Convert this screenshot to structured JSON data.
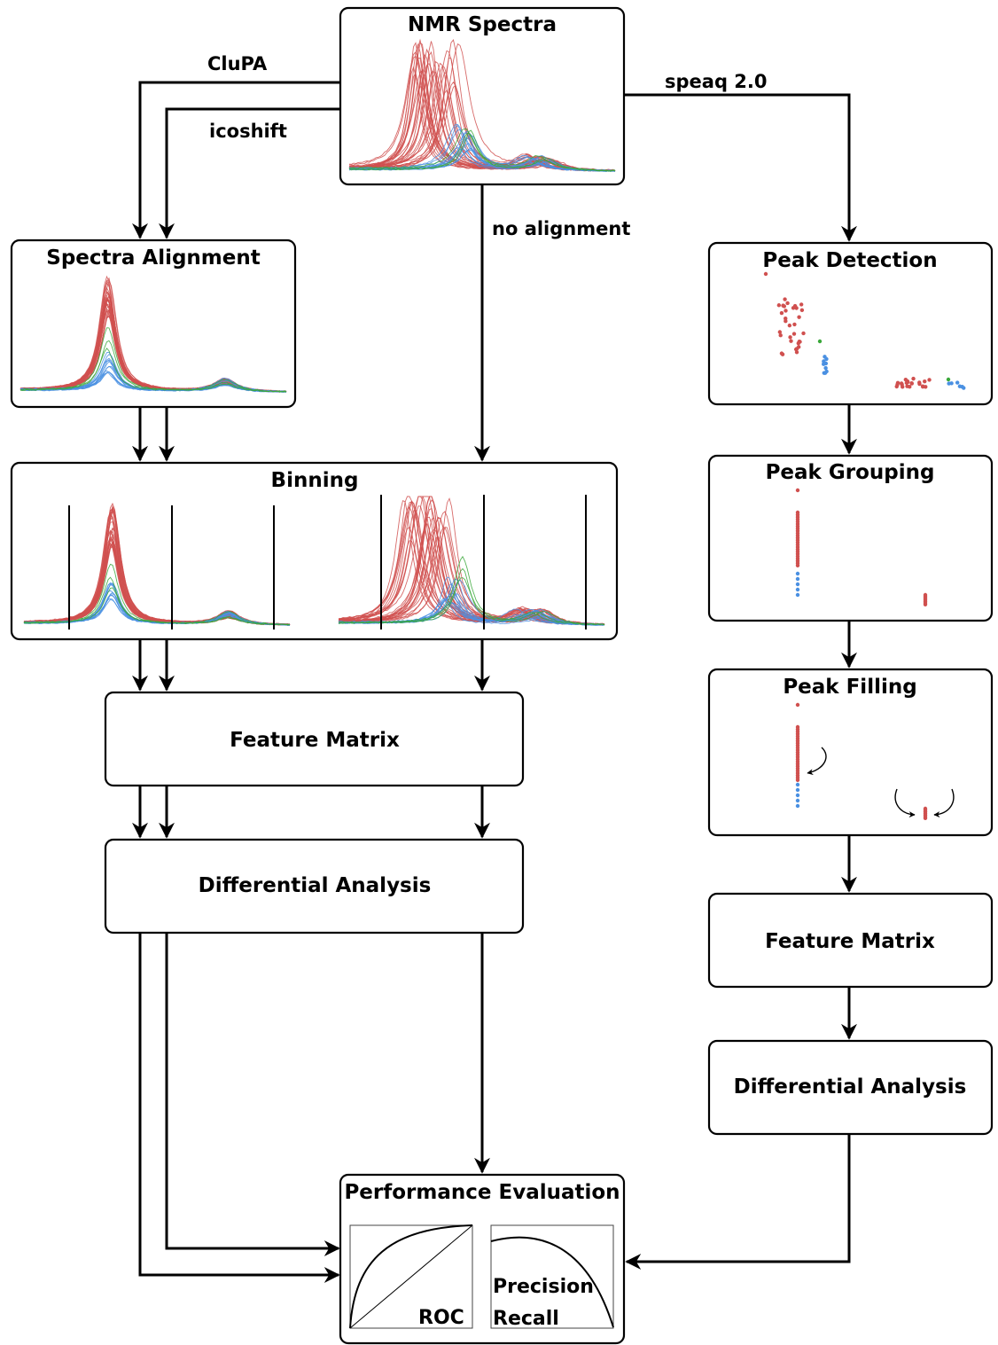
{
  "diagram": {
    "nodes": {
      "nmr_spectra": "NMR Spectra",
      "spectra_alignment": "Spectra Alignment",
      "binning": "Binning",
      "feature_matrix_left": "Feature Matrix",
      "differential_analysis_left": "Differential Analysis",
      "peak_detection": "Peak Detection",
      "peak_grouping": "Peak Grouping",
      "peak_filling": "Peak Filling",
      "feature_matrix_right": "Feature Matrix",
      "differential_analysis_right": "Differential Analysis",
      "performance_evaluation": "Performance Evaluation"
    },
    "edge_labels": {
      "clupa": "CluPA",
      "icoshift": "icoshift",
      "no_alignment": "no alignment",
      "speaq": "speaq 2.0"
    },
    "eval_labels": {
      "roc": "ROC",
      "precision": "Precision",
      "recall": "Recall"
    }
  },
  "colors": {
    "group_red": "#d0504f",
    "group_blue": "#4a90e2",
    "group_green": "#3aa83a",
    "line": "#000000"
  }
}
